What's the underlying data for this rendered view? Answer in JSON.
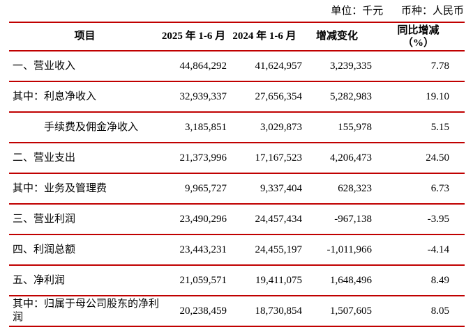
{
  "meta": {
    "unit_label": "单位：千元",
    "currency_label": "币种：人民币"
  },
  "table": {
    "accent_color": "#C00000",
    "headers": {
      "item": "项目",
      "period_2025": "2025 年 1-6 月",
      "period_2024": "2024 年 1-6 月",
      "change": "增减变化",
      "yoy_line1": "同比增减",
      "yoy_line2": "（%）"
    },
    "rows": [
      {
        "label": "一、营业收入",
        "v2025": "44,864,292",
        "v2024": "41,624,957",
        "change": "3,239,335",
        "yoy": "7.78"
      },
      {
        "label": "其中：利息净收入",
        "v2025": "32,939,337",
        "v2024": "27,656,354",
        "change": "5,282,983",
        "yoy": "19.10"
      },
      {
        "label": "手续费及佣金净收入",
        "v2025": "3,185,851",
        "v2024": "3,029,873",
        "change": "155,978",
        "yoy": "5.15"
      },
      {
        "label": "二、营业支出",
        "v2025": "21,373,996",
        "v2024": "17,167,523",
        "change": "4,206,473",
        "yoy": "24.50"
      },
      {
        "label": "其中：业务及管理费",
        "v2025": "9,965,727",
        "v2024": "9,337,404",
        "change": "628,323",
        "yoy": "6.73"
      },
      {
        "label": "三、营业利润",
        "v2025": "23,490,296",
        "v2024": "24,457,434",
        "change": "-967,138",
        "yoy": "-3.95"
      },
      {
        "label": "四、利润总额",
        "v2025": "23,443,231",
        "v2024": "24,455,197",
        "change": "-1,011,966",
        "yoy": "-4.14"
      },
      {
        "label": "五、净利润",
        "v2025": "21,059,571",
        "v2024": "19,411,075",
        "change": "1,648,496",
        "yoy": "8.49"
      },
      {
        "label": "其中：归属于母公司股东的净利润",
        "v2025": "20,238,459",
        "v2024": "18,730,854",
        "change": "1,507,605",
        "yoy": "8.05"
      }
    ]
  }
}
